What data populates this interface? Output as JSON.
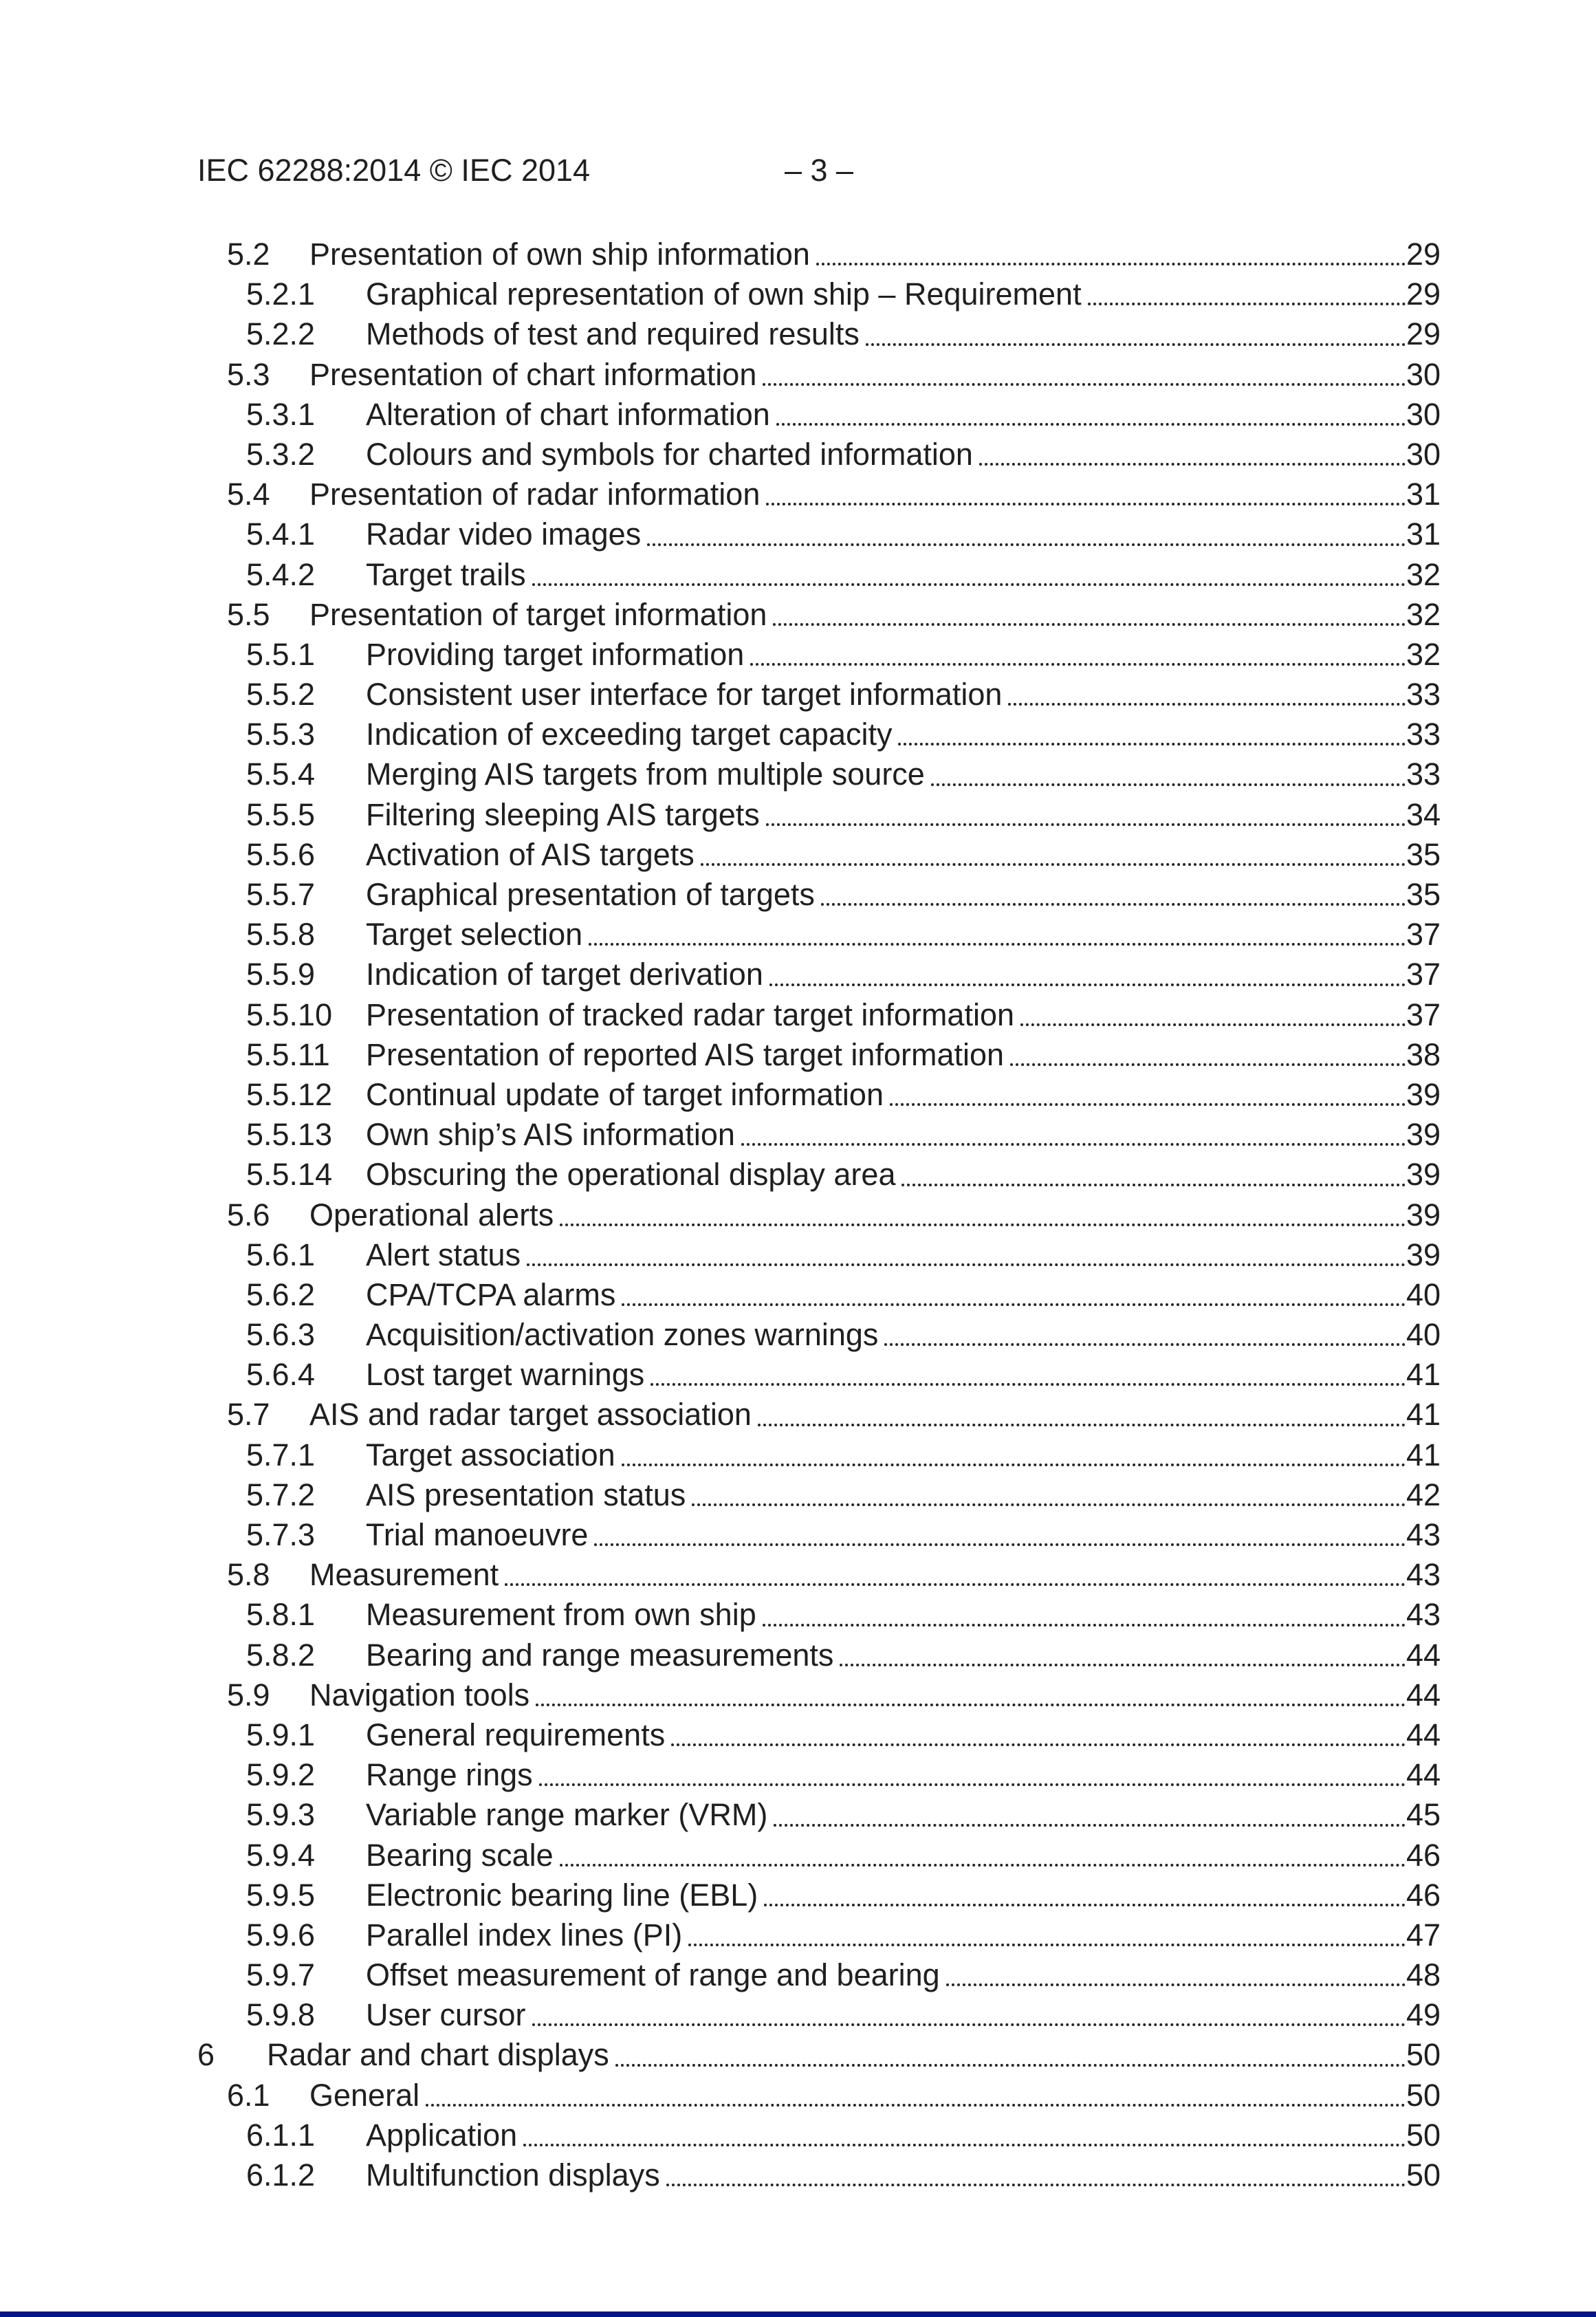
{
  "header": {
    "document_id": "IEC 62288:2014 © IEC 2014",
    "page_marker": "– 3 –"
  },
  "toc": {
    "entries": [
      {
        "number": "5.2",
        "title": "Presentation of own ship information",
        "page": "29",
        "level": 2
      },
      {
        "number": "5.2.1",
        "title": "Graphical representation of own ship – Requirement",
        "page": "29",
        "level": 3
      },
      {
        "number": "5.2.2",
        "title": "Methods of test and required results",
        "page": "29",
        "level": 3
      },
      {
        "number": "5.3",
        "title": "Presentation of chart information",
        "page": "30",
        "level": 2
      },
      {
        "number": "5.3.1",
        "title": "Alteration of chart information",
        "page": "30",
        "level": 3
      },
      {
        "number": "5.3.2",
        "title": "Colours and symbols for charted information",
        "page": "30",
        "level": 3
      },
      {
        "number": "5.4",
        "title": "Presentation of radar information",
        "page": "31",
        "level": 2
      },
      {
        "number": "5.4.1",
        "title": "Radar video images",
        "page": "31",
        "level": 3
      },
      {
        "number": "5.4.2",
        "title": "Target trails",
        "page": "32",
        "level": 3
      },
      {
        "number": "5.5",
        "title": "Presentation of target information",
        "page": "32",
        "level": 2
      },
      {
        "number": "5.5.1",
        "title": "Providing target information",
        "page": "32",
        "level": 3
      },
      {
        "number": "5.5.2",
        "title": "Consistent user interface for target information",
        "page": "33",
        "level": 3
      },
      {
        "number": "5.5.3",
        "title": "Indication of exceeding target capacity",
        "page": "33",
        "level": 3
      },
      {
        "number": "5.5.4",
        "title": "Merging AIS targets from multiple source",
        "page": "33",
        "level": 3
      },
      {
        "number": "5.5.5",
        "title": "Filtering sleeping AIS targets",
        "page": "34",
        "level": 3
      },
      {
        "number": "5.5.6",
        "title": "Activation of AIS targets",
        "page": "35",
        "level": 3
      },
      {
        "number": "5.5.7",
        "title": "Graphical presentation of targets",
        "page": "35",
        "level": 3
      },
      {
        "number": "5.5.8",
        "title": "Target selection",
        "page": "37",
        "level": 3
      },
      {
        "number": "5.5.9",
        "title": "Indication of target derivation",
        "page": "37",
        "level": 3
      },
      {
        "number": "5.5.10",
        "title": "Presentation of tracked radar target information",
        "page": "37",
        "level": 3
      },
      {
        "number": "5.5.11",
        "title": "Presentation of reported AIS target information",
        "page": "38",
        "level": 3
      },
      {
        "number": "5.5.12",
        "title": "Continual update of target information",
        "page": "39",
        "level": 3
      },
      {
        "number": "5.5.13",
        "title": "Own ship’s AIS information",
        "page": "39",
        "level": 3
      },
      {
        "number": "5.5.14",
        "title": "Obscuring the operational display area",
        "page": "39",
        "level": 3
      },
      {
        "number": "5.6",
        "title": "Operational alerts",
        "page": "39",
        "level": 2
      },
      {
        "number": "5.6.1",
        "title": "Alert status",
        "page": "39",
        "level": 3
      },
      {
        "number": "5.6.2",
        "title": "CPA/TCPA alarms",
        "page": "40",
        "level": 3
      },
      {
        "number": "5.6.3",
        "title": "Acquisition/activation zones warnings",
        "page": "40",
        "level": 3
      },
      {
        "number": "5.6.4",
        "title": "Lost target warnings",
        "page": "41",
        "level": 3
      },
      {
        "number": "5.7",
        "title": "AIS and radar target association",
        "page": "41",
        "level": 2
      },
      {
        "number": "5.7.1",
        "title": "Target association",
        "page": "41",
        "level": 3
      },
      {
        "number": "5.7.2",
        "title": "AIS presentation status",
        "page": "42",
        "level": 3
      },
      {
        "number": "5.7.3",
        "title": "Trial manoeuvre",
        "page": "43",
        "level": 3
      },
      {
        "number": "5.8",
        "title": "Measurement",
        "page": "43",
        "level": 2
      },
      {
        "number": "5.8.1",
        "title": "Measurement from own ship",
        "page": "43",
        "level": 3
      },
      {
        "number": "5.8.2",
        "title": "Bearing and range measurements",
        "page": "44",
        "level": 3
      },
      {
        "number": "5.9",
        "title": "Navigation tools",
        "page": "44",
        "level": 2
      },
      {
        "number": "5.9.1",
        "title": "General requirements",
        "page": "44",
        "level": 3
      },
      {
        "number": "5.9.2",
        "title": "Range rings",
        "page": "44",
        "level": 3
      },
      {
        "number": "5.9.3",
        "title": "Variable range marker (VRM)",
        "page": "45",
        "level": 3
      },
      {
        "number": "5.9.4",
        "title": "Bearing scale",
        "page": "46",
        "level": 3
      },
      {
        "number": "5.9.5",
        "title": "Electronic bearing line (EBL)",
        "page": "46",
        "level": 3
      },
      {
        "number": "5.9.6",
        "title": "Parallel index lines (PI)",
        "page": "47",
        "level": 3
      },
      {
        "number": "5.9.7",
        "title": "Offset measurement of range and bearing",
        "page": "48",
        "level": 3
      },
      {
        "number": "5.9.8",
        "title": "User cursor",
        "page": "49",
        "level": 3
      },
      {
        "number": "6",
        "title": "Radar and chart displays",
        "page": "50",
        "level": 1
      },
      {
        "number": "6.1",
        "title": "General",
        "page": "50",
        "level": 2
      },
      {
        "number": "6.1.1",
        "title": "Application",
        "page": "50",
        "level": 3
      },
      {
        "number": "6.1.2",
        "title": "Multifunction displays",
        "page": "50",
        "level": 3
      }
    ]
  },
  "footer": {
    "bar_color": "#001689"
  }
}
